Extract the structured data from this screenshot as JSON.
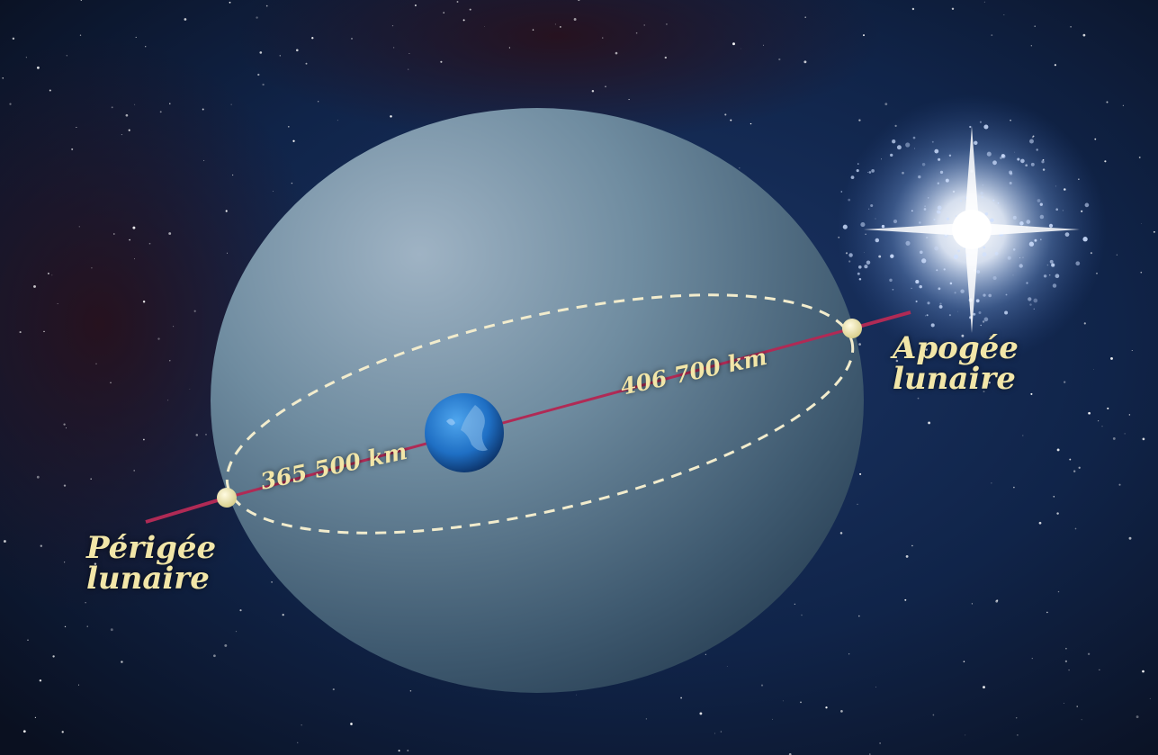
{
  "diagram": {
    "perigee": {
      "line1": "Périgée",
      "line2": "lunaire",
      "distance": "365 500 km"
    },
    "apogee": {
      "line1": "Apogée",
      "line2": "lunaire",
      "distance": "406 700 km"
    }
  },
  "colors": {
    "label": "#f2e6a8",
    "axis_line": "#b02a55",
    "orbit_dash": "#f2eccd",
    "sphere": "#6f8ca0",
    "earth": "#1f6fc4",
    "space": "#0d1a3a"
  }
}
